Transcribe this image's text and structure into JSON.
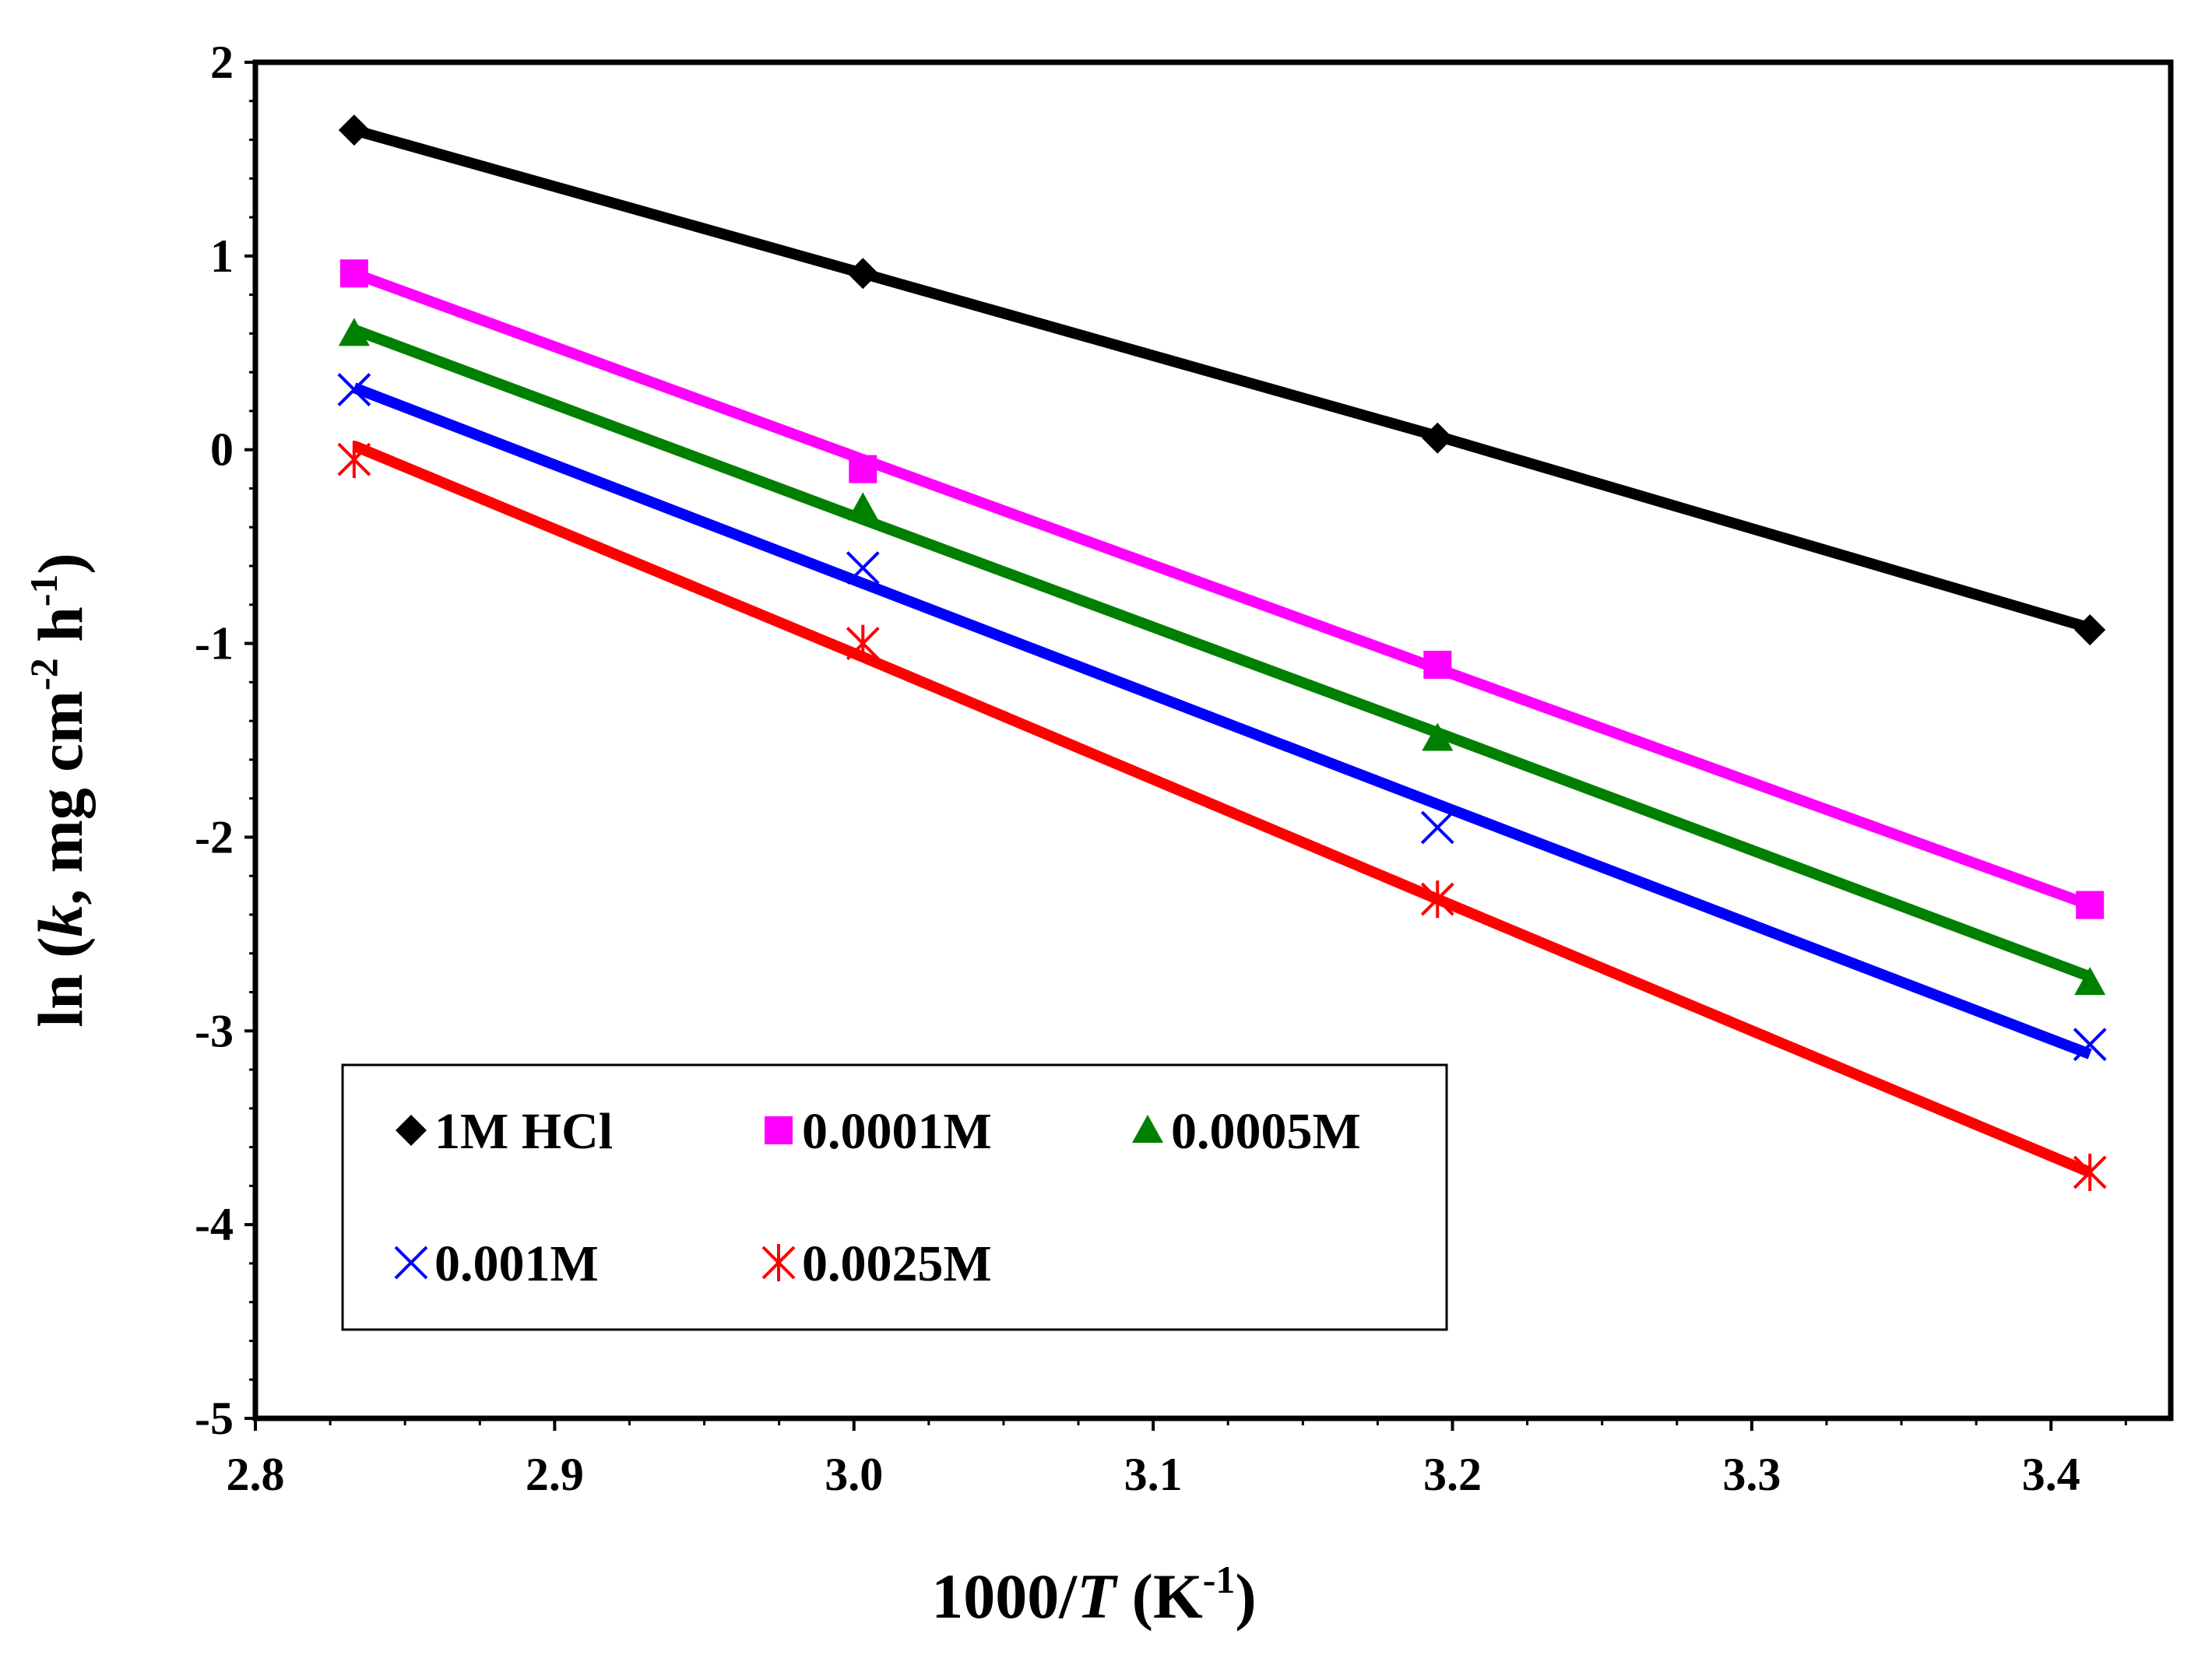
{
  "chart_data": {
    "type": "scatter",
    "title": "",
    "xlabel": {
      "prefix": "1000/",
      "italic": "T",
      "unit_open": " (K",
      "sup": "-1",
      "unit_close": ")"
    },
    "ylabel": {
      "prefix": "ln (",
      "italic": "k",
      "mid": ", mg cm",
      "sup1": "-2",
      "mid2": " h",
      "sup2": "-1",
      "close": ")"
    },
    "xlim": [
      2.8,
      3.44
    ],
    "ylim": [
      -5,
      2
    ],
    "x_ticks": [
      "2.8",
      "2.9",
      "3.0",
      "3.1",
      "3.2",
      "3.3",
      "3.4"
    ],
    "y_ticks": [
      "2",
      "1",
      "0",
      "-1",
      "-2",
      "-3",
      "-4",
      "-5"
    ],
    "grid": false,
    "legend_position": "bottom-left inside plot",
    "x": [
      2.833,
      3.003,
      3.195,
      3.413
    ],
    "series": [
      {
        "name": "1M HCl",
        "marker": "diamond",
        "color": "#000000",
        "values": [
          1.65,
          0.91,
          0.06,
          -0.93
        ],
        "fit": [
          1.65,
          0.91,
          0.07,
          -0.92
        ]
      },
      {
        "name": "0.0001M",
        "marker": "square",
        "color": "#ff00ff",
        "values": [
          0.91,
          -0.1,
          -1.11,
          -2.35
        ],
        "fit": [
          0.91,
          -0.05,
          -1.13,
          -2.35
        ]
      },
      {
        "name": "0.0005M",
        "marker": "triangle",
        "color": "#008000",
        "values": [
          0.6,
          -0.3,
          -1.49,
          -2.75
        ],
        "fit": [
          0.62,
          -0.36,
          -1.46,
          -2.72
        ]
      },
      {
        "name": "0.001M",
        "marker": "x",
        "color": "#0000ff",
        "values": [
          0.31,
          -0.61,
          -1.95,
          -3.07
        ],
        "fit": [
          0.32,
          -0.69,
          -1.83,
          -3.12
        ]
      },
      {
        "name": "0.0025M",
        "marker": "star",
        "color": "#ff0000",
        "values": [
          -0.05,
          -1.0,
          -2.32,
          -3.73
        ],
        "fit": [
          0.02,
          -1.07,
          -2.32,
          -3.73
        ]
      }
    ]
  }
}
